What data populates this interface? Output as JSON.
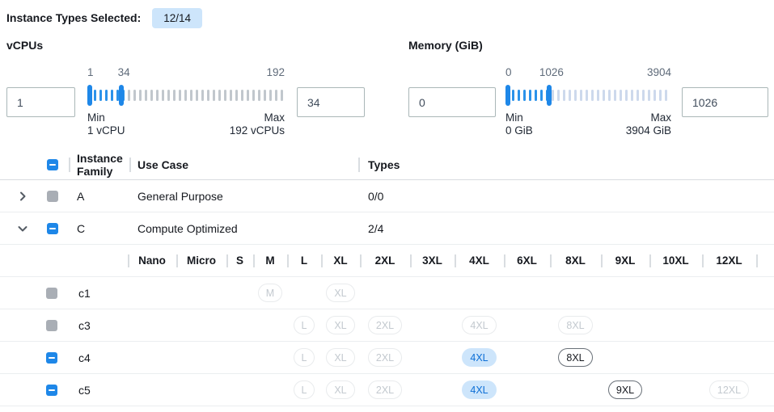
{
  "selection_header": {
    "label": "Instance Types Selected:",
    "count_badge": "12/14"
  },
  "filters": {
    "vcpus": {
      "label": "vCPUs",
      "from_value": "1",
      "to_value": "34",
      "range_min": 1,
      "range_max": 192,
      "low": 1,
      "high": 34,
      "low_label": "1",
      "high_label": "34",
      "max_label": "192",
      "min_caption": "Min",
      "min_detail": "1 vCPU",
      "max_caption": "Max",
      "max_detail": "192 vCPUs"
    },
    "memory": {
      "label": "Memory (GiB)",
      "from_value": "0",
      "to_value": "1026",
      "range_min": 0,
      "range_max": 3904,
      "low": 0,
      "high": 1026,
      "low_label": "0",
      "high_label": "1026",
      "max_label": "3904",
      "min_caption": "Min",
      "min_detail": "0 GiB",
      "max_caption": "Max",
      "max_detail": "3904 GiB"
    }
  },
  "table": {
    "headers": {
      "family": "Instance Family",
      "use_case": "Use Case",
      "types": "Types"
    },
    "header_checkbox": "indeterminate",
    "family_rows": [
      {
        "family": "A",
        "use_case": "General Purpose",
        "types": "0/0",
        "expanded": false,
        "checkbox": "disabled"
      },
      {
        "family": "C",
        "use_case": "Compute Optimized",
        "types": "2/4",
        "expanded": true,
        "checkbox": "indeterminate"
      }
    ],
    "size_columns": [
      "Nano",
      "Micro",
      "S",
      "M",
      "L",
      "XL",
      "2XL",
      "3XL",
      "4XL",
      "6XL",
      "8XL",
      "9XL",
      "10XL",
      "12XL"
    ],
    "instance_rows": [
      {
        "name": "c1",
        "checkbox": "disabled",
        "badges": [
          {
            "size": "M",
            "state": "disabled"
          },
          {
            "size": "XL",
            "state": "disabled"
          }
        ]
      },
      {
        "name": "c3",
        "checkbox": "disabled",
        "badges": [
          {
            "size": "L",
            "state": "disabled"
          },
          {
            "size": "XL",
            "state": "disabled"
          },
          {
            "size": "2XL",
            "state": "disabled"
          },
          {
            "size": "4XL",
            "state": "disabled"
          },
          {
            "size": "8XL",
            "state": "disabled"
          }
        ]
      },
      {
        "name": "c4",
        "checkbox": "indeterminate",
        "badges": [
          {
            "size": "L",
            "state": "disabled"
          },
          {
            "size": "XL",
            "state": "disabled"
          },
          {
            "size": "2XL",
            "state": "disabled"
          },
          {
            "size": "4XL",
            "state": "selected"
          },
          {
            "size": "8XL",
            "state": "enabled"
          }
        ]
      },
      {
        "name": "c5",
        "checkbox": "indeterminate",
        "badges": [
          {
            "size": "L",
            "state": "disabled"
          },
          {
            "size": "XL",
            "state": "disabled"
          },
          {
            "size": "2XL",
            "state": "disabled"
          },
          {
            "size": "4XL",
            "state": "selected"
          },
          {
            "size": "9XL",
            "state": "enabled"
          },
          {
            "size": "12XL",
            "state": "disabled"
          }
        ]
      }
    ]
  },
  "colors": {
    "accent_blue": "#1e87e8",
    "tick_selected": "#2b92ea",
    "tick_unselected_vcpus": "#c1c7cd",
    "tick_unselected_memory": "#cdd9ec",
    "badge_bg": "#cde5fb",
    "selected_pill_bg": "#cde5fb",
    "selected_pill_text": "#0d6fd6",
    "disabled_gray": "#a9aeb5"
  }
}
